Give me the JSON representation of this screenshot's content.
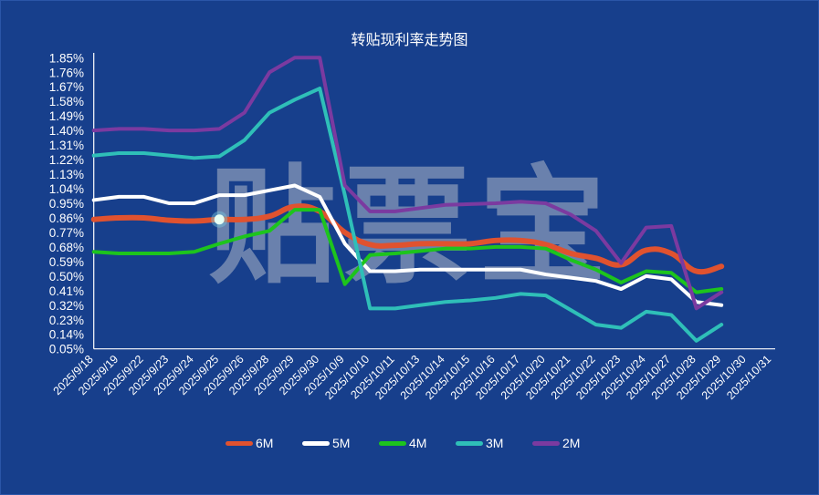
{
  "chart_data": {
    "type": "line",
    "title": "转贴现利率走势图",
    "xlabel": "",
    "ylabel": "",
    "ylim": [
      0.05,
      1.85
    ],
    "y_ticks": [
      "0.05%",
      "0.14%",
      "0.23%",
      "0.32%",
      "0.41%",
      "0.50%",
      "0.59%",
      "0.68%",
      "0.77%",
      "0.86%",
      "0.95%",
      "1.04%",
      "1.13%",
      "1.22%",
      "1.31%",
      "1.40%",
      "1.49%",
      "1.58%",
      "1.67%",
      "1.76%",
      "1.85%"
    ],
    "grid": false,
    "legend_position": "bottom",
    "categories": [
      "2025/9/18",
      "2025/9/19",
      "2025/9/22",
      "2025/9/23",
      "2025/9/24",
      "2025/9/25",
      "2025/9/26",
      "2025/9/28",
      "2025/9/29",
      "2025/9/30",
      "2025/10/9",
      "2025/10/10",
      "2025/10/11",
      "2025/10/13",
      "2025/10/14",
      "2025/10/15",
      "2025/10/16",
      "2025/10/17",
      "2025/10/20",
      "2025/10/21",
      "2025/10/22",
      "2025/10/23",
      "2025/10/24",
      "2025/10/27",
      "2025/10/28",
      "2025/10/29",
      "2025/10/30",
      "2025/10/31"
    ],
    "series": [
      {
        "name": "6M",
        "color": "#e0522f",
        "smooth": true,
        "values": [
          0.85,
          0.86,
          0.86,
          0.845,
          0.84,
          0.85,
          0.85,
          0.87,
          0.93,
          0.9,
          0.77,
          0.695,
          0.69,
          0.7,
          0.7,
          0.7,
          0.72,
          0.72,
          0.695,
          0.64,
          0.61,
          0.57,
          0.66,
          0.64,
          0.53,
          0.56,
          null,
          null
        ]
      },
      {
        "name": "5M",
        "color": "#ffffff",
        "smooth": false,
        "values": [
          0.97,
          0.99,
          0.99,
          0.95,
          0.95,
          1.0,
          1.0,
          1.03,
          1.06,
          0.99,
          0.7,
          0.53,
          0.53,
          0.54,
          0.54,
          0.54,
          0.54,
          0.54,
          0.51,
          0.49,
          0.47,
          0.42,
          0.5,
          0.48,
          0.34,
          0.32,
          null,
          null
        ]
      },
      {
        "name": "4M",
        "color": "#1dc41d",
        "smooth": false,
        "values": [
          0.65,
          0.64,
          0.64,
          0.64,
          0.65,
          0.7,
          0.745,
          0.78,
          0.91,
          0.91,
          0.45,
          0.63,
          0.64,
          0.655,
          0.67,
          0.67,
          0.68,
          0.68,
          0.67,
          0.6,
          0.54,
          0.46,
          0.53,
          0.52,
          0.4,
          0.42,
          null,
          null
        ]
      },
      {
        "name": "3M",
        "color": "#2fbfb8",
        "smooth": false,
        "values": [
          1.245,
          1.26,
          1.26,
          1.245,
          1.23,
          1.24,
          1.34,
          1.51,
          1.59,
          1.66,
          1.0,
          0.3,
          0.3,
          0.32,
          0.34,
          0.35,
          0.365,
          0.39,
          0.38,
          0.29,
          0.2,
          0.18,
          0.28,
          0.26,
          0.1,
          0.2,
          null,
          null
        ]
      },
      {
        "name": "2M",
        "color": "#7b3aa0",
        "smooth": false,
        "values": [
          1.4,
          1.41,
          1.41,
          1.4,
          1.4,
          1.41,
          1.51,
          1.76,
          1.85,
          1.85,
          1.06,
          0.9,
          0.9,
          0.92,
          0.94,
          0.945,
          0.95,
          0.96,
          0.95,
          0.88,
          0.78,
          0.58,
          0.8,
          0.81,
          0.3,
          0.4,
          null,
          null
        ]
      }
    ],
    "highlighted_point": {
      "series": "6M",
      "category": "2025/9/25"
    }
  },
  "watermark": "贴票宝",
  "colors": {
    "background": "#173f8c",
    "axis": "#ffffff"
  }
}
